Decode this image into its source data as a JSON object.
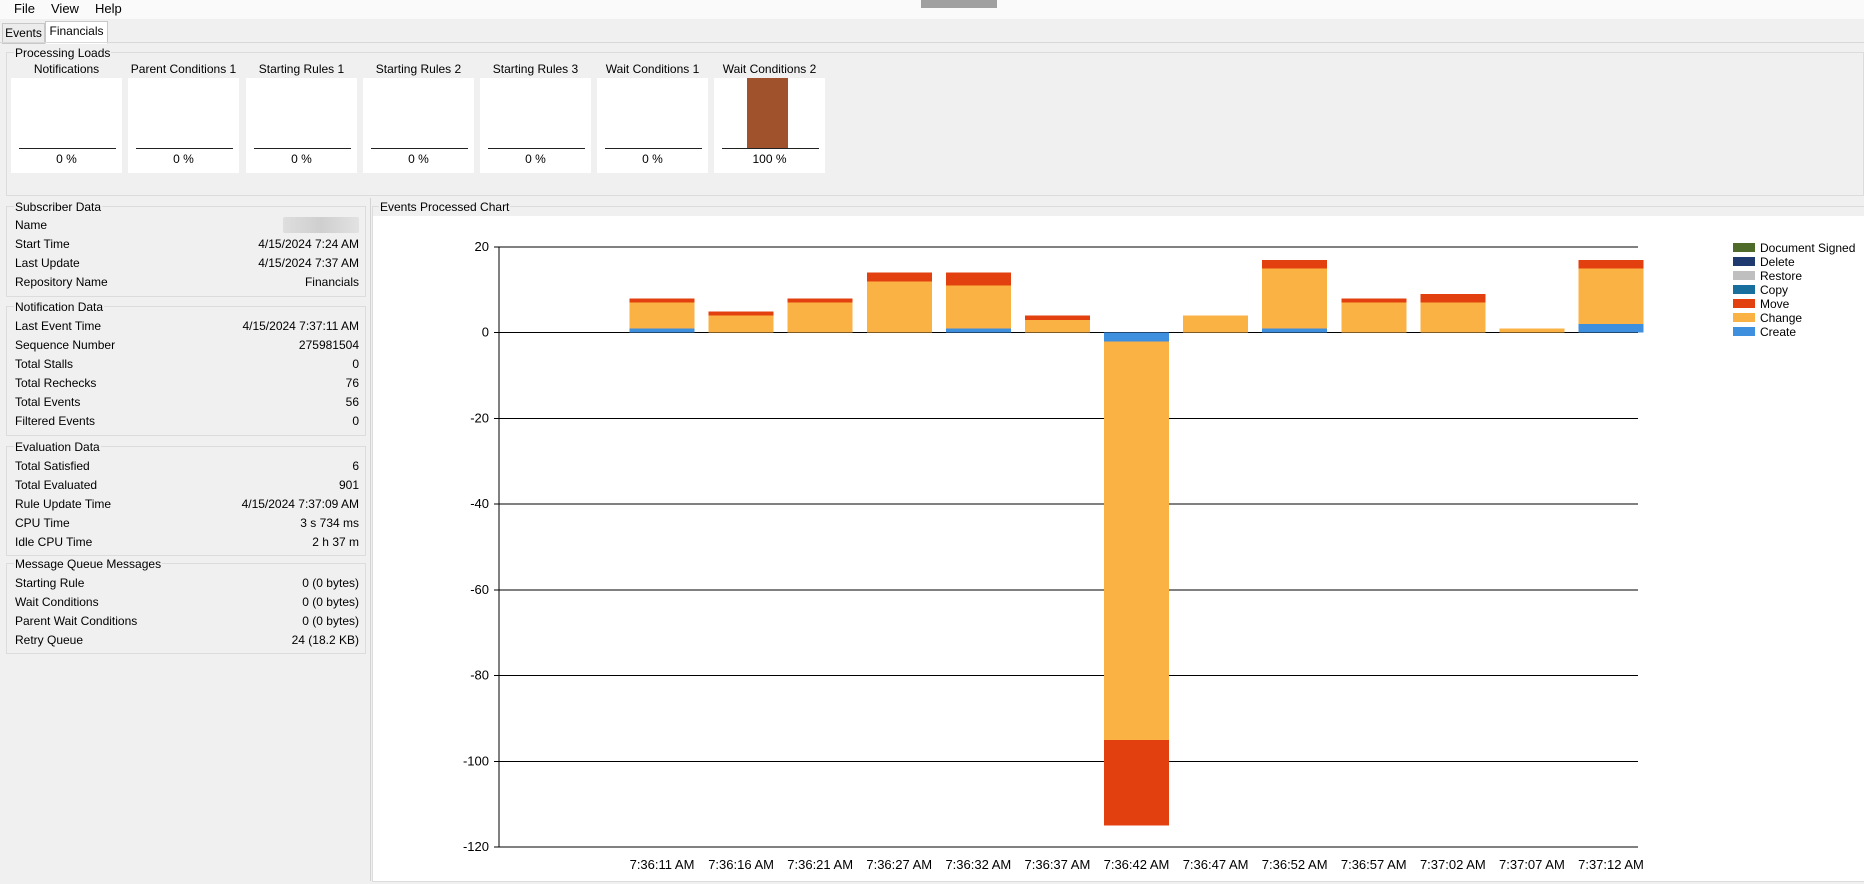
{
  "menu": [
    "File",
    "View",
    "Help"
  ],
  "tabs": [
    {
      "label": "Events",
      "active": false
    },
    {
      "label": "Financials",
      "active": true
    }
  ],
  "processing": {
    "title": "Processing Loads",
    "gauges": [
      {
        "name": "Notifications",
        "value": 0,
        "label": "0 %"
      },
      {
        "name": "Parent Conditions 1",
        "value": 0,
        "label": "0 %"
      },
      {
        "name": "Starting Rules 1",
        "value": 0,
        "label": "0 %"
      },
      {
        "name": "Starting Rules 2",
        "value": 0,
        "label": "0 %"
      },
      {
        "name": "Starting Rules 3",
        "value": 0,
        "label": "0 %"
      },
      {
        "name": "Wait Conditions 1",
        "value": 0,
        "label": "0 %"
      },
      {
        "name": "Wait Conditions 2",
        "value": 100,
        "label": "100 %"
      }
    ],
    "fill_color": "#a0522d"
  },
  "subscriber": {
    "title": "Subscriber Data",
    "rows": [
      {
        "label": "Name",
        "value": ""
      },
      {
        "label": "Start Time",
        "value": "4/15/2024 7:24 AM"
      },
      {
        "label": "Last Update",
        "value": "4/15/2024 7:37 AM"
      },
      {
        "label": "Repository Name",
        "value": "Financials"
      }
    ]
  },
  "notification": {
    "title": "Notification Data",
    "rows": [
      {
        "label": "Last Event Time",
        "value": "4/15/2024 7:37:11 AM"
      },
      {
        "label": "Sequence Number",
        "value": "275981504"
      },
      {
        "label": "Total Stalls",
        "value": "0"
      },
      {
        "label": "Total Rechecks",
        "value": "76"
      },
      {
        "label": "Total Events",
        "value": "56"
      },
      {
        "label": "Filtered Events",
        "value": "0"
      }
    ]
  },
  "evaluation": {
    "title": "Evaluation Data",
    "rows": [
      {
        "label": "Total Satisfied",
        "value": "6"
      },
      {
        "label": "Total Evaluated",
        "value": "901"
      },
      {
        "label": "Rule Update Time",
        "value": "4/15/2024 7:37:09 AM"
      },
      {
        "label": "CPU Time",
        "value": "3 s 734 ms"
      },
      {
        "label": "Idle CPU Time",
        "value": "2 h 37 m"
      }
    ]
  },
  "queue": {
    "title": "Message Queue Messages",
    "rows": [
      {
        "label": "Starting Rule",
        "value": "0 (0 bytes)"
      },
      {
        "label": "Wait Conditions",
        "value": "0 (0 bytes)"
      },
      {
        "label": "Parent Wait Conditions",
        "value": "0 (0 bytes)"
      },
      {
        "label": "Retry Queue",
        "value": "24 (18.2 KB)"
      }
    ]
  },
  "chart_title": "Events Processed Chart",
  "chart_data": {
    "type": "bar",
    "stacked": true,
    "categories": [
      "7:36:11 AM",
      "7:36:16 AM",
      "7:36:21 AM",
      "7:36:27 AM",
      "7:36:32 AM",
      "7:36:37 AM",
      "7:36:42 AM",
      "7:36:47 AM",
      "7:36:52 AM",
      "7:36:57 AM",
      "7:37:02 AM",
      "7:37:07 AM",
      "7:37:12 AM"
    ],
    "ylim": [
      -120,
      20
    ],
    "yticks": [
      20,
      0,
      -20,
      -40,
      -60,
      -80,
      -100,
      -120
    ],
    "grid": true,
    "legend_position": "top-right",
    "series": [
      {
        "name": "Create",
        "color": "#3f8fdf",
        "values": [
          1,
          0,
          0,
          0,
          1,
          0,
          -2,
          0,
          1,
          0,
          0,
          0,
          2
        ]
      },
      {
        "name": "Change",
        "color": "#fbb244",
        "values": [
          6,
          4,
          7,
          12,
          10,
          3,
          -93,
          4,
          14,
          7,
          7,
          1,
          13
        ]
      },
      {
        "name": "Move",
        "color": "#e2410f",
        "values": [
          1,
          1,
          1,
          2,
          3,
          1,
          -20,
          0,
          2,
          1,
          2,
          0,
          2
        ]
      },
      {
        "name": "Copy",
        "color": "#186e9c",
        "values": [
          0,
          0,
          0,
          0,
          0,
          0,
          0,
          0,
          0,
          0,
          0,
          0,
          0
        ]
      },
      {
        "name": "Restore",
        "color": "#bfbfbf",
        "values": [
          0,
          0,
          0,
          0,
          0,
          0,
          0,
          0,
          0,
          0,
          0,
          0,
          0
        ]
      },
      {
        "name": "Delete",
        "color": "#1f3a6e",
        "values": [
          0,
          0,
          0,
          0,
          0,
          0,
          0,
          0,
          0,
          0,
          0,
          0,
          0
        ]
      },
      {
        "name": "Document Signed",
        "color": "#4f6b2a",
        "values": [
          0,
          0,
          0,
          0,
          0,
          0,
          0,
          0,
          0,
          0,
          0,
          0,
          0
        ]
      }
    ],
    "legend_order": [
      "Document Signed",
      "Delete",
      "Restore",
      "Copy",
      "Move",
      "Change",
      "Create"
    ]
  }
}
